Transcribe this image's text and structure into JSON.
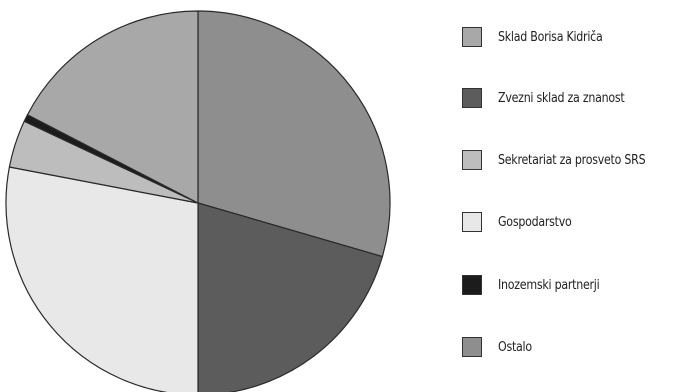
{
  "chart_data": {
    "type": "pie",
    "slices": [
      {
        "label": "Ostalo",
        "value": 29.5,
        "color": "#8e8e8e"
      },
      {
        "label": "Zvezni sklad za znanost",
        "value": 20.5,
        "color": "#5c5c5c"
      },
      {
        "label": "Gospodarstvo",
        "value": 28.0,
        "color": "#e8e8e8"
      },
      {
        "label": "Sekretariat za prosveto SRS",
        "value": 4.0,
        "color": "#bdbdbd"
      },
      {
        "label": "Inozemski partnerji",
        "value": 0.6,
        "color": "#1c1c1c"
      },
      {
        "label": "Sklad Borisa Kidriča",
        "value": 17.4,
        "color": "#a8a8a8"
      }
    ],
    "legend": [
      {
        "label": "Sklad Borisa Kidriča",
        "color": "#a8a8a8"
      },
      {
        "label": "Zvezni sklad za znanost",
        "color": "#5c5c5c"
      },
      {
        "label": "Sekretariat za prosveto SRS",
        "color": "#bdbdbd"
      },
      {
        "label": "Gospodarstvo",
        "color": "#e8e8e8"
      },
      {
        "label": "Inozemski partnerji",
        "color": "#1c1c1c"
      },
      {
        "label": "Ostalo",
        "color": "#8e8e8e"
      }
    ],
    "legend_position": "right"
  }
}
